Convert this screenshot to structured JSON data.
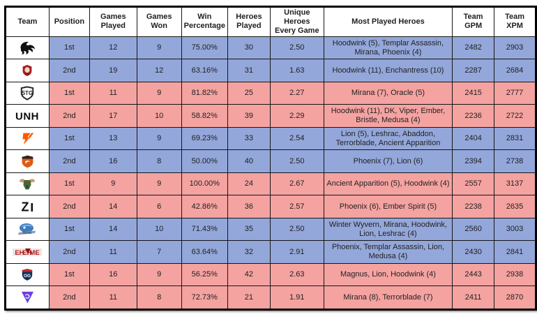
{
  "chart_data": {
    "type": "table",
    "columns": [
      "Team",
      "Position",
      "Games Played",
      "Games Won",
      "Win Percentage",
      "Heroes Played",
      "Unique Heroes Every Game",
      "Most Played Heroes",
      "Team GPM",
      "Team XPM"
    ],
    "rows": [
      {
        "team_logo": "spirit-dragon-logo",
        "position": "1st",
        "games_played": "12",
        "games_won": "9",
        "win_percentage": "75.00%",
        "heroes_played": "30",
        "unique_heroes_every_game": "2.50",
        "most_played_heroes": "Hoodwink (5), Templar Assassin, Mirana, Phoenix (4)",
        "team_gpm": "2482",
        "team_xpm": "2903"
      },
      {
        "team_logo": "red-crest-logo",
        "position": "2nd",
        "games_played": "19",
        "games_won": "12",
        "win_percentage": "63.16%",
        "heroes_played": "31",
        "unique_heroes_every_game": "1.63",
        "most_played_heroes": "Hoodwink (11), Enchantress (10)",
        "team_gpm": "2287",
        "team_xpm": "2684"
      },
      {
        "team_logo": "stg-shield-logo",
        "position": "1st",
        "games_played": "11",
        "games_won": "9",
        "win_percentage": "81.82%",
        "heroes_played": "25",
        "unique_heroes_every_game": "2.27",
        "most_played_heroes": "Mirana (7), Oracle (5)",
        "team_gpm": "2415",
        "team_xpm": "2777"
      },
      {
        "team_logo": "unh-wordmark-logo",
        "position": "2nd",
        "games_played": "17",
        "games_won": "10",
        "win_percentage": "58.82%",
        "heroes_played": "39",
        "unique_heroes_every_game": "2.29",
        "most_played_heroes": "Hoodwink (11), DK, Viper, Ember, Bristle, Medusa (4)",
        "team_gpm": "2236",
        "team_xpm": "2722"
      },
      {
        "team_logo": "fnatic-logo",
        "position": "1st",
        "games_played": "13",
        "games_won": "9",
        "win_percentage": "69.23%",
        "heroes_played": "33",
        "unique_heroes_every_game": "2.54",
        "most_played_heroes": "Lion (5), Leshrac, Abaddon, Terrorblade, Ancient Apparition",
        "team_gpm": "2404",
        "team_xpm": "2831"
      },
      {
        "team_logo": "tnc-shield-logo",
        "position": "2nd",
        "games_played": "16",
        "games_won": "8",
        "win_percentage": "50.00%",
        "heroes_played": "40",
        "unique_heroes_every_game": "2.50",
        "most_played_heroes": "Phoenix (7), Lion (6)",
        "team_gpm": "2394",
        "team_xpm": "2738"
      },
      {
        "team_logo": "bull-head-logo",
        "position": "1st",
        "games_played": "9",
        "games_won": "9",
        "win_percentage": "100.00%",
        "heroes_played": "24",
        "unique_heroes_every_game": "2.67",
        "most_played_heroes": "Ancient Apparition (5), Hoodwink (4)",
        "team_gpm": "2557",
        "team_xpm": "3137"
      },
      {
        "team_logo": "z-mark-logo",
        "position": "2nd",
        "games_played": "14",
        "games_won": "6",
        "win_percentage": "42.86%",
        "heroes_played": "36",
        "unique_heroes_every_game": "2.57",
        "most_played_heroes": "Phoenix (6), Ember Spirit (5)",
        "team_gpm": "2238",
        "team_xpm": "2635"
      },
      {
        "team_logo": "blue-beast-logo",
        "position": "1st",
        "games_played": "14",
        "games_won": "10",
        "win_percentage": "71.43%",
        "heroes_played": "35",
        "unique_heroes_every_game": "2.50",
        "most_played_heroes": "Winter Wyvern, Mirana, Hoodwink, Lion, Leshrac (4)",
        "team_gpm": "2560",
        "team_xpm": "3003"
      },
      {
        "team_logo": "ehome-wordmark-logo",
        "position": "2nd",
        "games_played": "11",
        "games_won": "7",
        "win_percentage": "63.64%",
        "heroes_played": "32",
        "unique_heroes_every_game": "2.91",
        "most_played_heroes": "Phoenix, Templar Assassin, Lion, Medusa (4)",
        "team_gpm": "2430",
        "team_xpm": "2841"
      },
      {
        "team_logo": "og-shield-logo",
        "position": "1st",
        "games_played": "16",
        "games_won": "9",
        "win_percentage": "56.25%",
        "heroes_played": "42",
        "unique_heroes_every_game": "2.63",
        "most_played_heroes": "Magnus, Lion, Hoodwink (4)",
        "team_gpm": "2443",
        "team_xpm": "2938"
      },
      {
        "team_logo": "purple-triangle-logo",
        "position": "2nd",
        "games_played": "11",
        "games_won": "8",
        "win_percentage": "72.73%",
        "heroes_played": "21",
        "unique_heroes_every_game": "1.91",
        "most_played_heroes": "Mirana (8), Terrorblade (7)",
        "team_gpm": "2411",
        "team_xpm": "2870"
      }
    ],
    "row_colors": [
      "blue",
      "blue",
      "pink",
      "pink",
      "blue",
      "blue",
      "pink",
      "pink",
      "blue",
      "blue",
      "pink",
      "pink"
    ],
    "colors": {
      "row_blue": "#94A7DA",
      "row_pink": "#F4A3A1",
      "border": "#161616",
      "text": "#1F1F1F"
    },
    "title": "",
    "layout": {
      "grid": "on",
      "header_row": true,
      "team_logo_column_background": "#FFFFFF"
    }
  }
}
